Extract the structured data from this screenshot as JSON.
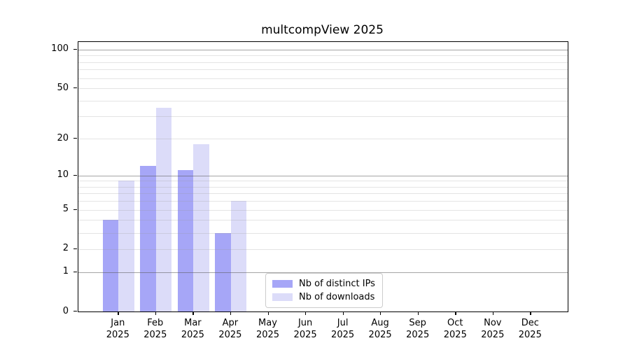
{
  "chart_data": {
    "type": "bar",
    "title": "multcompView 2025",
    "categories": [
      "Jan",
      "Feb",
      "Mar",
      "Apr",
      "May",
      "Jun",
      "Jul",
      "Aug",
      "Sep",
      "Oct",
      "Nov",
      "Dec"
    ],
    "x_year": "2025",
    "series": [
      {
        "name": "Nb of distinct IPs",
        "color": "#a6a6f7",
        "values": [
          4,
          12,
          11,
          3,
          0,
          0,
          0,
          0,
          0,
          0,
          0,
          0
        ]
      },
      {
        "name": "Nb of downloads",
        "color": "#dcdcf9",
        "values": [
          9,
          35,
          18,
          6,
          0,
          0,
          0,
          0,
          0,
          0,
          0,
          0
        ]
      }
    ],
    "y_scale": "log10(1+x)",
    "y_ticks": [
      0,
      1,
      2,
      5,
      10,
      20,
      50,
      100
    ],
    "y_major_gridlines": [
      1,
      10,
      100
    ],
    "y_minor_gridlines": [
      2,
      3,
      4,
      5,
      6,
      7,
      8,
      9,
      20,
      30,
      40,
      50,
      60,
      70,
      80,
      90
    ],
    "ylim": [
      0,
      113
    ],
    "grid": true,
    "legend_position": "inside-bottom-center",
    "colors": {
      "frame": "#000000",
      "grid_major": "#b0b0b0",
      "grid_minor": "#e7e7e7",
      "background": "#ffffff"
    }
  }
}
